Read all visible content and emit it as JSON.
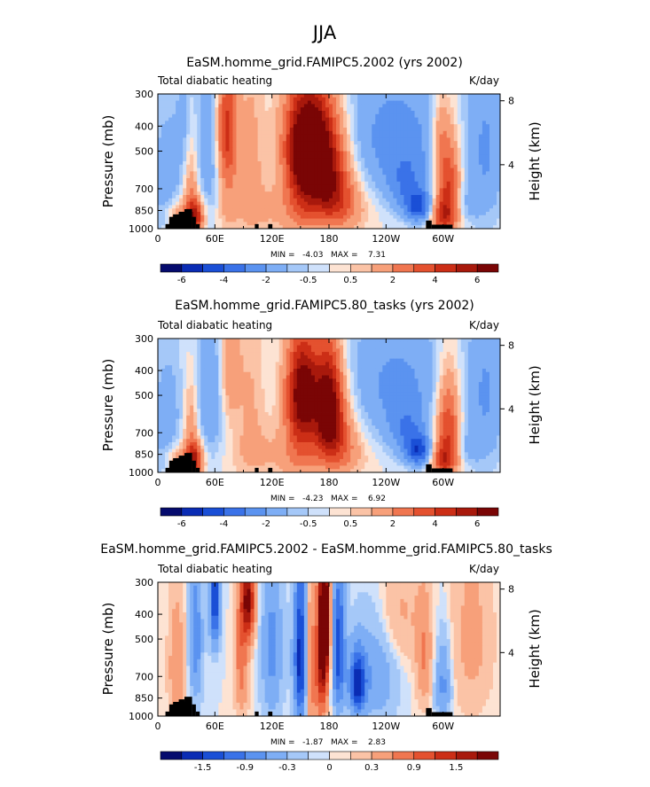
{
  "figure_title": "JJA",
  "panel_common": {
    "left_label": "Total diabatic heating",
    "right_label": "K/day",
    "ylabel": "Pressure (mb)",
    "ylabel_right": "Height (km)",
    "y_ticks": [
      "300",
      "400",
      "500",
      "700",
      "850",
      "1000"
    ],
    "y_tick_values": [
      300,
      400,
      500,
      700,
      850,
      1000
    ],
    "x_ticks": [
      "0",
      "60E",
      "120E",
      "180",
      "120W",
      "60W"
    ],
    "x_tick_values": [
      0,
      60,
      120,
      180,
      240,
      300
    ],
    "height_ticks": [
      "8",
      "4"
    ],
    "height_tick_values": [
      8,
      4
    ],
    "xlim": [
      0,
      360
    ],
    "ylim": [
      1000,
      300
    ]
  },
  "chart_data": [
    {
      "type": "heatmap",
      "title": "EaSM.homme_grid.FAMIPC5.2002 (yrs 2002)",
      "stats_text": "MIN =   -4.03   MAX =    7.31",
      "min": -4.03,
      "max": 7.31,
      "colorbar_labels": [
        "-6",
        "-4",
        "-2",
        "-0.5",
        "0.5",
        "2",
        "4",
        "6"
      ],
      "colorbar_levels": [
        -7,
        -6,
        -5,
        -4,
        -3,
        -2,
        -1,
        -0.5,
        0,
        0.5,
        1,
        2,
        3,
        4,
        5,
        6,
        7
      ],
      "features": [
        {
          "lon": 160,
          "p": 450,
          "value": 6.5,
          "slon": 18,
          "sp": 150
        },
        {
          "lon": 175,
          "p": 600,
          "value": 4.0,
          "slon": 18,
          "sp": 180
        },
        {
          "lon": 185,
          "p": 750,
          "value": 2.5,
          "slon": 18,
          "sp": 150
        },
        {
          "lon": 195,
          "p": 850,
          "value": 1.0,
          "slon": 20,
          "sp": 120
        },
        {
          "lon": 150,
          "p": 650,
          "value": 2.5,
          "slon": 12,
          "sp": 250
        },
        {
          "lon": 120,
          "p": 850,
          "value": 1.0,
          "slon": 40,
          "sp": 150
        },
        {
          "lon": 38,
          "p": 900,
          "value": 5.5,
          "slon": 7,
          "sp": 100
        },
        {
          "lon": 35,
          "p": 650,
          "value": 2.0,
          "slon": 6,
          "sp": 200
        },
        {
          "lon": 20,
          "p": 900,
          "value": 2.0,
          "slon": 8,
          "sp": 90
        },
        {
          "lon": 72,
          "p": 400,
          "value": 4.0,
          "slon": 8,
          "sp": 160
        },
        {
          "lon": 72,
          "p": 650,
          "value": 1.5,
          "slon": 8,
          "sp": 250
        },
        {
          "lon": 98,
          "p": 500,
          "value": 1.2,
          "slon": 10,
          "sp": 300
        },
        {
          "lon": 305,
          "p": 650,
          "value": 4.5,
          "slon": 9,
          "sp": 200
        },
        {
          "lon": 300,
          "p": 900,
          "value": 3.5,
          "slon": 10,
          "sp": 100
        },
        {
          "lon": 296,
          "p": 420,
          "value": 1.5,
          "slon": 6,
          "sp": 100
        },
        {
          "lon": 55,
          "p": 500,
          "value": -2.0,
          "slon": 12,
          "sp": 300
        },
        {
          "lon": 10,
          "p": 650,
          "value": -1.5,
          "slon": 14,
          "sp": 300
        },
        {
          "lon": 28,
          "p": 400,
          "value": -1.0,
          "slon": 6,
          "sp": 150
        },
        {
          "lon": 250,
          "p": 450,
          "value": -2.5,
          "slon": 40,
          "sp": 200
        },
        {
          "lon": 275,
          "p": 830,
          "value": -3.8,
          "slon": 10,
          "sp": 80
        },
        {
          "lon": 262,
          "p": 700,
          "value": -2.0,
          "slon": 14,
          "sp": 120
        },
        {
          "lon": 345,
          "p": 500,
          "value": -2.0,
          "slon": 14,
          "sp": 300
        },
        {
          "lon": 325,
          "p": 800,
          "value": -1.0,
          "slon": 10,
          "sp": 100
        }
      ]
    },
    {
      "type": "heatmap",
      "title": "EaSM.homme_grid.FAMIPC5.80_tasks (yrs 2002)",
      "stats_text": "MIN =   -4.23   MAX =    6.92",
      "min": -4.23,
      "max": 6.92,
      "colorbar_labels": [
        "-6",
        "-4",
        "-2",
        "-0.5",
        "0.5",
        "2",
        "4",
        "6"
      ],
      "colorbar_levels": [
        -7,
        -6,
        -5,
        -4,
        -3,
        -2,
        -1,
        -0.5,
        0,
        0.5,
        1,
        2,
        3,
        4,
        5,
        6,
        7
      ],
      "features": [
        {
          "lon": 153,
          "p": 470,
          "value": 5.5,
          "slon": 12,
          "sp": 150
        },
        {
          "lon": 180,
          "p": 520,
          "value": 6.0,
          "slon": 10,
          "sp": 180
        },
        {
          "lon": 185,
          "p": 700,
          "value": 3.0,
          "slon": 16,
          "sp": 180
        },
        {
          "lon": 195,
          "p": 850,
          "value": 1.0,
          "slon": 20,
          "sp": 120
        },
        {
          "lon": 150,
          "p": 650,
          "value": 2.5,
          "slon": 12,
          "sp": 250
        },
        {
          "lon": 120,
          "p": 850,
          "value": 1.0,
          "slon": 40,
          "sp": 150
        },
        {
          "lon": 38,
          "p": 900,
          "value": 5.2,
          "slon": 7,
          "sp": 100
        },
        {
          "lon": 35,
          "p": 650,
          "value": 2.0,
          "slon": 6,
          "sp": 200
        },
        {
          "lon": 20,
          "p": 900,
          "value": 2.0,
          "slon": 8,
          "sp": 90
        },
        {
          "lon": 75,
          "p": 400,
          "value": 2.0,
          "slon": 8,
          "sp": 160
        },
        {
          "lon": 98,
          "p": 500,
          "value": 1.0,
          "slon": 10,
          "sp": 300
        },
        {
          "lon": 305,
          "p": 650,
          "value": 4.2,
          "slon": 9,
          "sp": 200
        },
        {
          "lon": 300,
          "p": 900,
          "value": 3.5,
          "slon": 10,
          "sp": 100
        },
        {
          "lon": 55,
          "p": 500,
          "value": -2.0,
          "slon": 12,
          "sp": 300
        },
        {
          "lon": 10,
          "p": 650,
          "value": -1.5,
          "slon": 14,
          "sp": 300
        },
        {
          "lon": 250,
          "p": 450,
          "value": -2.2,
          "slon": 40,
          "sp": 200
        },
        {
          "lon": 275,
          "p": 830,
          "value": -4.0,
          "slon": 10,
          "sp": 80
        },
        {
          "lon": 262,
          "p": 700,
          "value": -2.0,
          "slon": 14,
          "sp": 120
        },
        {
          "lon": 345,
          "p": 500,
          "value": -2.0,
          "slon": 14,
          "sp": 300
        },
        {
          "lon": 325,
          "p": 800,
          "value": -1.0,
          "slon": 10,
          "sp": 100
        }
      ]
    },
    {
      "type": "heatmap",
      "title": "EaSM.homme_grid.FAMIPC5.2002 - EaSM.homme_grid.FAMIPC5.80_tasks",
      "stats_text": "MIN =   -1.87   MAX =    2.83",
      "min": -1.87,
      "max": 2.83,
      "colorbar_labels": [
        "-1.5",
        "-0.9",
        "-0.3",
        "0",
        "0.3",
        "0.9",
        "1.5"
      ],
      "colorbar_levels": [
        -2.1,
        -1.8,
        -1.5,
        -1.2,
        -0.9,
        -0.6,
        -0.3,
        -0.1,
        0,
        0.1,
        0.3,
        0.6,
        0.9,
        1.2,
        1.5,
        1.8,
        2.1
      ],
      "features": [
        {
          "lon": 175,
          "p": 420,
          "value": 2.8,
          "slon": 4,
          "sp": 180
        },
        {
          "lon": 172,
          "p": 700,
          "value": 1.2,
          "slon": 5,
          "sp": 250
        },
        {
          "lon": 150,
          "p": 600,
          "value": -1.7,
          "slon": 5,
          "sp": 300
        },
        {
          "lon": 190,
          "p": 550,
          "value": -1.4,
          "slon": 5,
          "sp": 250
        },
        {
          "lon": 210,
          "p": 750,
          "value": -1.6,
          "slon": 6,
          "sp": 150
        },
        {
          "lon": 160,
          "p": 650,
          "value": 0.8,
          "slon": 4,
          "sp": 300
        },
        {
          "lon": 95,
          "p": 350,
          "value": 1.8,
          "slon": 5,
          "sp": 100
        },
        {
          "lon": 88,
          "p": 600,
          "value": 0.8,
          "slon": 5,
          "sp": 250
        },
        {
          "lon": 60,
          "p": 350,
          "value": -1.5,
          "slon": 4,
          "sp": 120
        },
        {
          "lon": 40,
          "p": 500,
          "value": -0.8,
          "slon": 5,
          "sp": 250
        },
        {
          "lon": 20,
          "p": 650,
          "value": 0.6,
          "slon": 6,
          "sp": 250
        },
        {
          "lon": 120,
          "p": 550,
          "value": -0.7,
          "slon": 8,
          "sp": 300
        },
        {
          "lon": 230,
          "p": 650,
          "value": -0.6,
          "slon": 15,
          "sp": 250
        },
        {
          "lon": 280,
          "p": 600,
          "value": 0.6,
          "slon": 6,
          "sp": 200
        },
        {
          "lon": 300,
          "p": 750,
          "value": -0.7,
          "slon": 6,
          "sp": 200
        },
        {
          "lon": 330,
          "p": 500,
          "value": 0.4,
          "slon": 15,
          "sp": 300
        },
        {
          "lon": 250,
          "p": 400,
          "value": 0.4,
          "slon": 20,
          "sp": 150
        }
      ]
    }
  ]
}
